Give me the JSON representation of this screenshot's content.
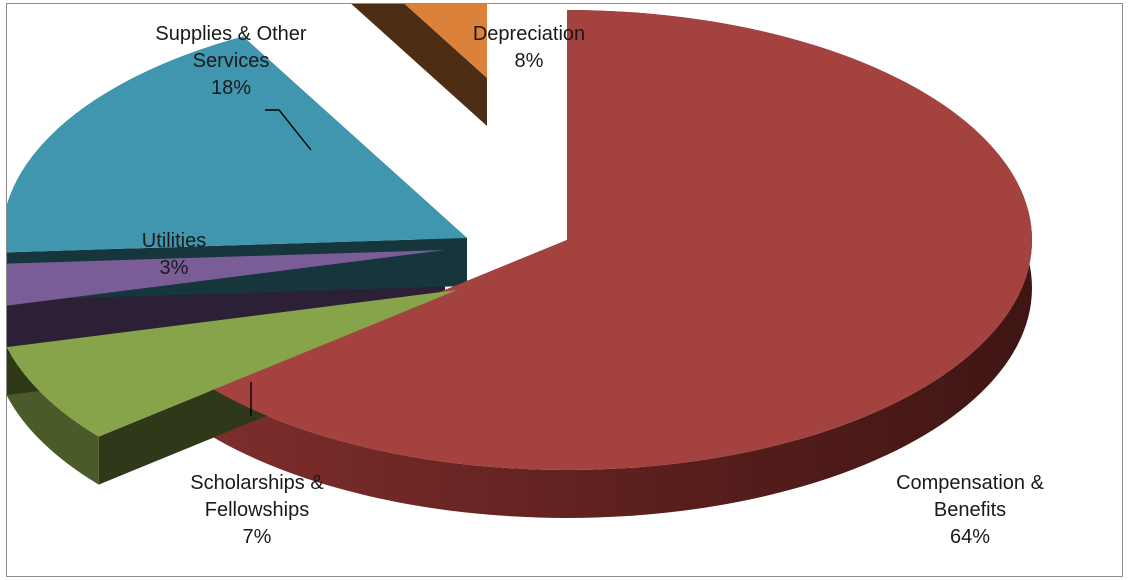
{
  "chart_data": {
    "type": "pie",
    "style": "3d-exploded",
    "title": "",
    "slices": [
      {
        "name": "Compensation & Benefits",
        "label_lines": [
          "Compensation &",
          "Benefits"
        ],
        "percent_label": "64%",
        "value": 64,
        "color": "#a4423f"
      },
      {
        "name": "Scholarships & Fellowships",
        "label_lines": [
          "Scholarships &",
          "Fellowships"
        ],
        "percent_label": "7%",
        "value": 7,
        "color": "#87a44a"
      },
      {
        "name": "Utilities",
        "label_lines": [
          "Utilities"
        ],
        "percent_label": "3%",
        "value": 3,
        "color": "#7a5c96"
      },
      {
        "name": "Supplies & Other Services",
        "label_lines": [
          "Supplies & Other",
          "Services"
        ],
        "percent_label": "18%",
        "value": 18,
        "color": "#3f96ae"
      },
      {
        "name": "Depreciation",
        "label_lines": [
          "Depreciation"
        ],
        "percent_label": "8%",
        "value": 8,
        "color": "#dc813a"
      }
    ],
    "legend": "none",
    "data_labels": "category name and percent"
  }
}
